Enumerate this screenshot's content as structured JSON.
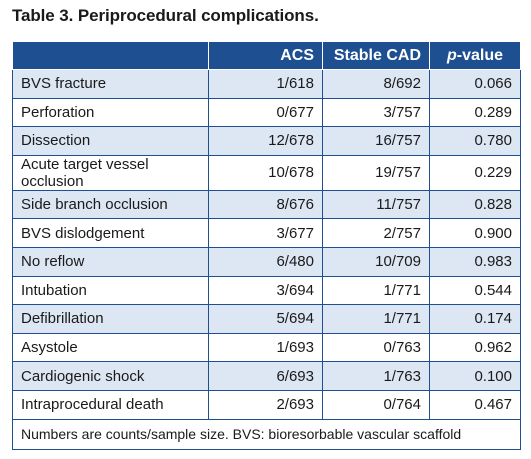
{
  "caption": "Table 3. Periprocedural complications.",
  "columns": {
    "label": "",
    "acs": "ACS",
    "stable": "Stable CAD",
    "p_italic": "p",
    "p_rest": "-value"
  },
  "rows": [
    {
      "label": "BVS fracture",
      "acs": "1/618",
      "stable": "8/692",
      "p": "0.066"
    },
    {
      "label": "Perforation",
      "acs": "0/677",
      "stable": "3/757",
      "p": "0.289"
    },
    {
      "label": "Dissection",
      "acs": "12/678",
      "stable": "16/757",
      "p": "0.780"
    },
    {
      "label": "Acute target vessel occlusion",
      "acs": "10/678",
      "stable": "19/757",
      "p": "0.229"
    },
    {
      "label": "Side branch occlusion",
      "acs": "8/676",
      "stable": "11/757",
      "p": "0.828"
    },
    {
      "label": "BVS dislodgement",
      "acs": "3/677",
      "stable": "2/757",
      "p": "0.900"
    },
    {
      "label": "No reflow",
      "acs": "6/480",
      "stable": "10/709",
      "p": "0.983"
    },
    {
      "label": "Intubation",
      "acs": "3/694",
      "stable": "1/771",
      "p": "0.544"
    },
    {
      "label": "Defibrillation",
      "acs": "5/694",
      "stable": "1/771",
      "p": "0.174"
    },
    {
      "label": "Asystole",
      "acs": "1/693",
      "stable": "0/763",
      "p": "0.962"
    },
    {
      "label": "Cardiogenic shock",
      "acs": "6/693",
      "stable": "1/763",
      "p": "0.100"
    },
    {
      "label": "Intraprocedural death",
      "acs": "2/693",
      "stable": "0/764",
      "p": "0.467"
    }
  ],
  "footnote": "Numbers are counts/sample size. BVS: bioresorbable vascular scaffold",
  "colors": {
    "header_bg": "#1d4f91",
    "stripe": "#dde6f3",
    "border": "#1d4f91"
  }
}
